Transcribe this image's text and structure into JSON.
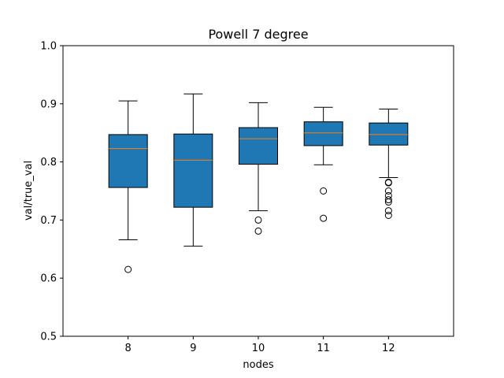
{
  "chart_data": {
    "type": "box",
    "title": "Powell 7 degree",
    "xlabel": "nodes",
    "ylabel": "val/true_val",
    "ylim": [
      0.5,
      1.0
    ],
    "yticks": [
      "0.5",
      "0.6",
      "0.7",
      "0.8",
      "0.9",
      "1.0"
    ],
    "grid": false,
    "box_color": "#1f77b4",
    "median_color": "#ff7f0e",
    "boxes": [
      {
        "label": "8",
        "whisker_low": 0.666,
        "q1": 0.756,
        "median": 0.823,
        "q3": 0.847,
        "whisker_high": 0.905,
        "outliers": [
          0.615
        ]
      },
      {
        "label": "9",
        "whisker_low": 0.655,
        "q1": 0.722,
        "median": 0.803,
        "q3": 0.848,
        "whisker_high": 0.917,
        "outliers": []
      },
      {
        "label": "10",
        "whisker_low": 0.716,
        "q1": 0.796,
        "median": 0.84,
        "q3": 0.859,
        "whisker_high": 0.902,
        "outliers": [
          0.7,
          0.681
        ]
      },
      {
        "label": "11",
        "whisker_low": 0.795,
        "q1": 0.828,
        "median": 0.85,
        "q3": 0.869,
        "whisker_high": 0.894,
        "outliers": [
          0.75,
          0.703
        ]
      },
      {
        "label": "12",
        "whisker_low": 0.773,
        "q1": 0.829,
        "median": 0.847,
        "q3": 0.867,
        "whisker_high": 0.891,
        "outliers": [
          0.765,
          0.764,
          0.75,
          0.742,
          0.735,
          0.731,
          0.716,
          0.708
        ]
      }
    ]
  }
}
